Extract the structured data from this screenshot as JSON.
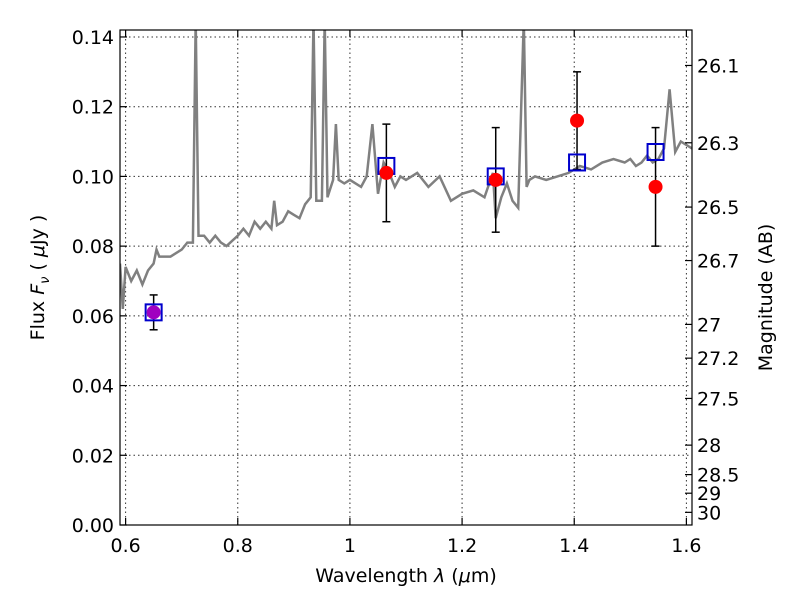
{
  "chart_data": {
    "type": "line",
    "title": "",
    "xlabel": "Wavelength  λ (μm)",
    "ylabel": "Flux  F_ν  ( μJy )",
    "ylabel_right": "Magnitude (AB)",
    "xlim": [
      0.59,
      1.61
    ],
    "ylim": [
      0.0,
      0.142
    ],
    "grid": true,
    "x_ticks": [
      "0.6",
      "0.8",
      "1",
      "1.2",
      "1.4",
      "1.6"
    ],
    "y_ticks": [
      "0.00",
      "0.02",
      "0.04",
      "0.06",
      "0.08",
      "0.10",
      "0.12",
      "0.14"
    ],
    "right_ticks": [
      "26.1",
      "26.3",
      "26.5",
      "26.7",
      "27",
      "27.2",
      "27.5",
      "28",
      "28.5",
      "29",
      "30"
    ],
    "colors": {
      "model_spectrum": "#808080",
      "observed_points": "#ff0000",
      "model_photometry": "#0000cc",
      "blended_point": "#a000c0",
      "error_bars": "#000000"
    },
    "series": [
      {
        "x": [
          0.59,
          0.595,
          0.6,
          0.61,
          0.62,
          0.63,
          0.64,
          0.65,
          0.655,
          0.66,
          0.67,
          0.68,
          0.69,
          0.7,
          0.71,
          0.72,
          0.725,
          0.73,
          0.74,
          0.75,
          0.76,
          0.77,
          0.78,
          0.8,
          0.81,
          0.82,
          0.83,
          0.84,
          0.85,
          0.86,
          0.865,
          0.87,
          0.88,
          0.89,
          0.9,
          0.91,
          0.92,
          0.93,
          0.935,
          0.94,
          0.95,
          0.955,
          0.96,
          0.97,
          0.975,
          0.98,
          0.99,
          1.0,
          1.02,
          1.03,
          1.04,
          1.05,
          1.06,
          1.07,
          1.08,
          1.09,
          1.1,
          1.12,
          1.14,
          1.16,
          1.18,
          1.2,
          1.22,
          1.24,
          1.255,
          1.26,
          1.27,
          1.28,
          1.29,
          1.3,
          1.31,
          1.315,
          1.32,
          1.33,
          1.35,
          1.37,
          1.39,
          1.41,
          1.43,
          1.45,
          1.47,
          1.49,
          1.5,
          1.51,
          1.52,
          1.53,
          1.54,
          1.55,
          1.56,
          1.57,
          1.58,
          1.59,
          1.61
        ],
        "y": [
          0.075,
          0.062,
          0.074,
          0.07,
          0.073,
          0.069,
          0.073,
          0.075,
          0.079,
          0.077,
          0.077,
          0.077,
          0.078,
          0.079,
          0.081,
          0.081,
          0.145,
          0.083,
          0.083,
          0.081,
          0.083,
          0.081,
          0.08,
          0.083,
          0.085,
          0.083,
          0.087,
          0.085,
          0.087,
          0.085,
          0.093,
          0.086,
          0.087,
          0.09,
          0.089,
          0.088,
          0.092,
          0.094,
          0.145,
          0.093,
          0.093,
          0.145,
          0.094,
          0.099,
          0.115,
          0.099,
          0.098,
          0.099,
          0.097,
          0.1,
          0.115,
          0.095,
          0.104,
          0.101,
          0.097,
          0.1,
          0.099,
          0.101,
          0.097,
          0.1,
          0.093,
          0.095,
          0.096,
          0.094,
          0.101,
          0.088,
          0.094,
          0.098,
          0.093,
          0.091,
          0.145,
          0.097,
          0.099,
          0.1,
          0.099,
          0.1,
          0.101,
          0.103,
          0.102,
          0.104,
          0.105,
          0.104,
          0.105,
          0.103,
          0.104,
          0.106,
          0.104,
          0.105,
          0.108,
          0.125,
          0.107,
          0.11,
          0.108
        ]
      },
      {
        "x": [
          0.65,
          1.065,
          1.26,
          1.405,
          1.545
        ],
        "y": [
          0.061,
          0.101,
          0.099,
          0.116,
          0.097
        ],
        "yerr": [
          0.005,
          0.014,
          0.015,
          0.014,
          0.017
        ]
      },
      {
        "x": [
          0.65,
          1.065,
          1.26,
          1.405,
          1.545
        ],
        "y": [
          0.061,
          0.103,
          0.1,
          0.104,
          0.107
        ]
      }
    ]
  }
}
